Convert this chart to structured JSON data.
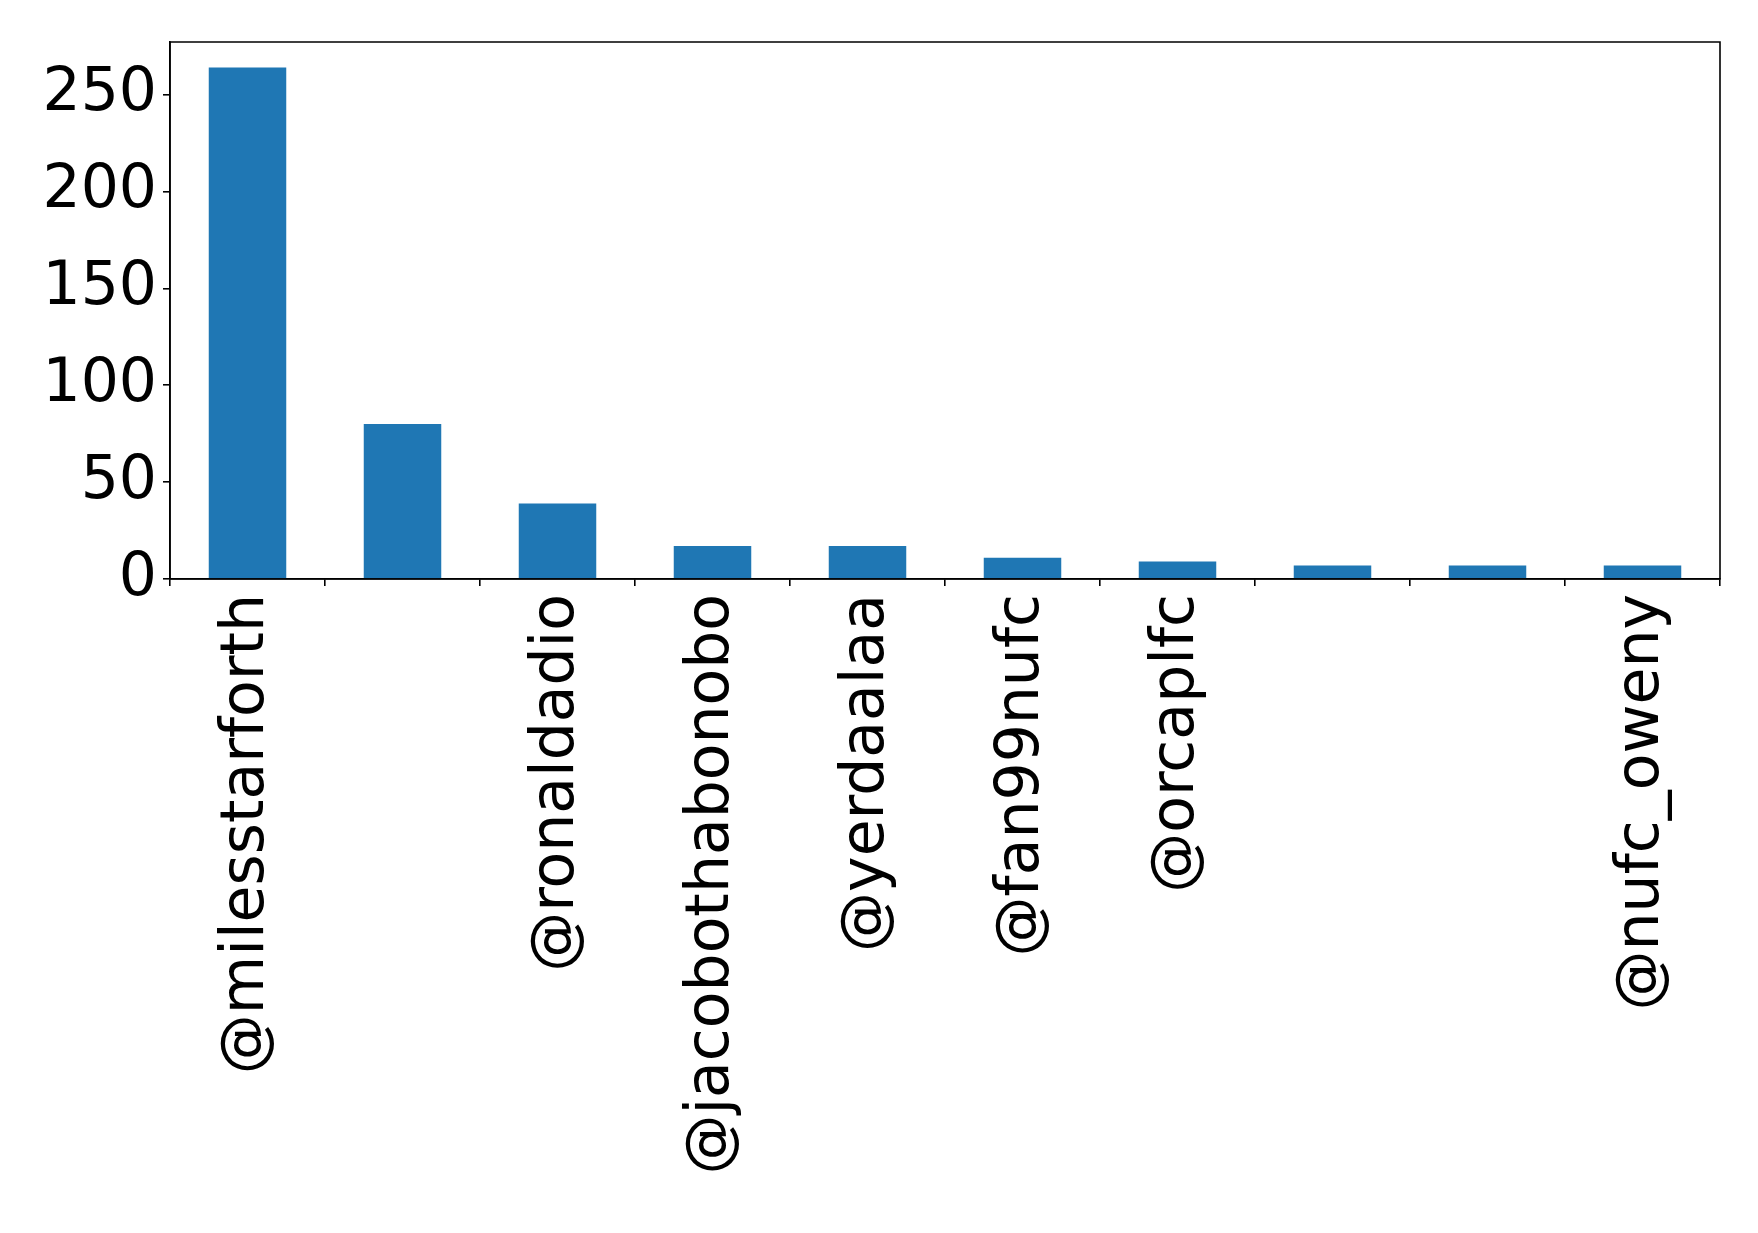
{
  "chart_data": {
    "type": "bar",
    "categories": [
      "@milesstarforth",
      null,
      "@ronaldadio",
      "@jacobothabonobo",
      "@yerdaalaa",
      "@fan99nufc",
      "@orcaplfc",
      null,
      null,
      "@nufc_oweny"
    ],
    "values": [
      264,
      80,
      39,
      17,
      17,
      11,
      9,
      7,
      7,
      7
    ],
    "color": "#1f77b4",
    "ylim": [
      0,
      277.2
    ],
    "yticks": [
      0,
      50,
      100,
      150,
      200,
      250
    ]
  }
}
